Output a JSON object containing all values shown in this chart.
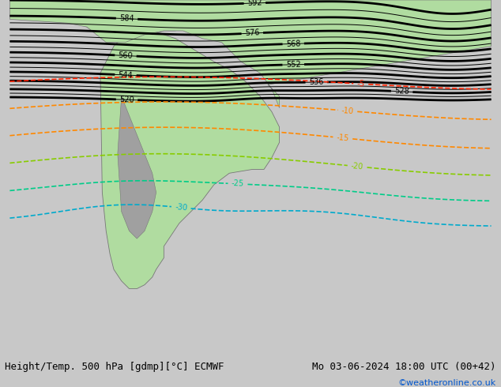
{
  "title_left": "Height/Temp. 500 hPa [gdmp][°C] ECMWF",
  "title_right": "Mo 03-06-2024 18:00 UTC (00+42)",
  "credit": "©weatheronline.co.uk",
  "bg_color": "#c8c8c8",
  "land_color": "#b0dca0",
  "land_color_andes": "#b8b8b8",
  "ocean_color": "#d0d0d0",
  "bottom_bar_color": "#e0e0e0",
  "z500_color": "#000000",
  "temp_m5_color": "#ff2200",
  "temp_m10_color": "#ff8800",
  "temp_m15_color": "#ff8800",
  "temp_m20_color": "#88cc00",
  "temp_m25_color": "#00cc88",
  "temp_m30_color": "#00aacc",
  "font_size_bottom": 9,
  "font_size_credit": 8,
  "figsize": [
    6.34,
    4.9
  ],
  "dpi": 100,
  "xlim": [
    -105,
    20
  ],
  "ylim": [
    -72,
    20
  ]
}
